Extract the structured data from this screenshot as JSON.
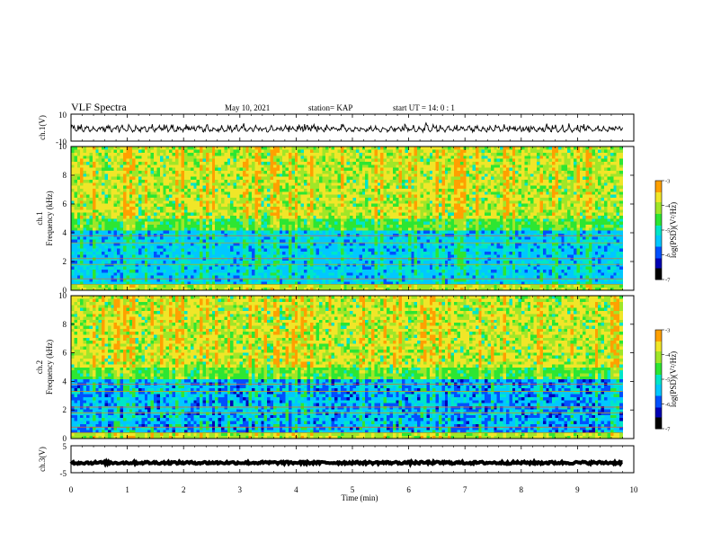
{
  "header": {
    "title": "VLF Spectra",
    "date": "May 10, 2021",
    "station": "station= KAP",
    "start": "start  UT =   14: 0  : 1"
  },
  "colors": {
    "spectrum_scale": [
      "#000000",
      "#0000b4",
      "#0050ff",
      "#00c8ff",
      "#00e6c8",
      "#2de632",
      "#a0e628",
      "#f0e628",
      "#ffa000",
      "#ff2d14",
      "#ffffff"
    ],
    "trace": "#000000"
  },
  "chart_data": [
    {
      "type": "line",
      "name": "ch1-waveform",
      "ylabel": "ch.1(V)",
      "ylim": [
        -10,
        10
      ],
      "y_tick_labels": [
        "10",
        "-10"
      ],
      "xlim": [
        0,
        10
      ],
      "approx_range": [
        -5,
        3
      ]
    },
    {
      "type": "heatmap",
      "name": "ch1-spectrogram",
      "ylabel_channel": "ch.1",
      "ylabel": "Frequency (kHz)",
      "ylim": [
        0,
        10
      ],
      "y_ticks": [
        0,
        2,
        4,
        6,
        8,
        10
      ],
      "xlim": [
        0,
        10
      ],
      "data_end_min": 9.8,
      "colorbar": {
        "label": "log(PSD)(V²/Hz)",
        "ticks": [
          -7,
          -6,
          -5,
          -4,
          -3
        ],
        "tick_labels": [
          "-7",
          "-6",
          "-5",
          "-4",
          "-3"
        ]
      }
    },
    {
      "type": "heatmap",
      "name": "ch2-spectrogram",
      "ylabel_channel": "ch.2",
      "ylabel": "Frequency (kHz)",
      "ylim": [
        0,
        10
      ],
      "y_ticks": [
        0,
        2,
        4,
        6,
        8,
        10
      ],
      "xlim": [
        0,
        10
      ],
      "data_end_min": 9.8,
      "colorbar": {
        "label": "log(PSD)(V²/Hz)",
        "ticks": [
          -7,
          -6,
          -5,
          -4,
          -3
        ],
        "tick_labels": [
          "-7",
          "-6",
          "-5",
          "-4",
          "-3"
        ]
      }
    },
    {
      "type": "line",
      "name": "ch3-waveform",
      "ylabel": "ch.3(V)",
      "ylim": [
        -5,
        5
      ],
      "y_tick_labels": [
        "5",
        "-5"
      ],
      "xlim": [
        0,
        10
      ],
      "approx_level": -1.3
    }
  ],
  "x_axis": {
    "label": "Time (min)",
    "ticks": [
      0,
      1,
      2,
      3,
      4,
      5,
      6,
      7,
      8,
      9,
      10
    ]
  }
}
